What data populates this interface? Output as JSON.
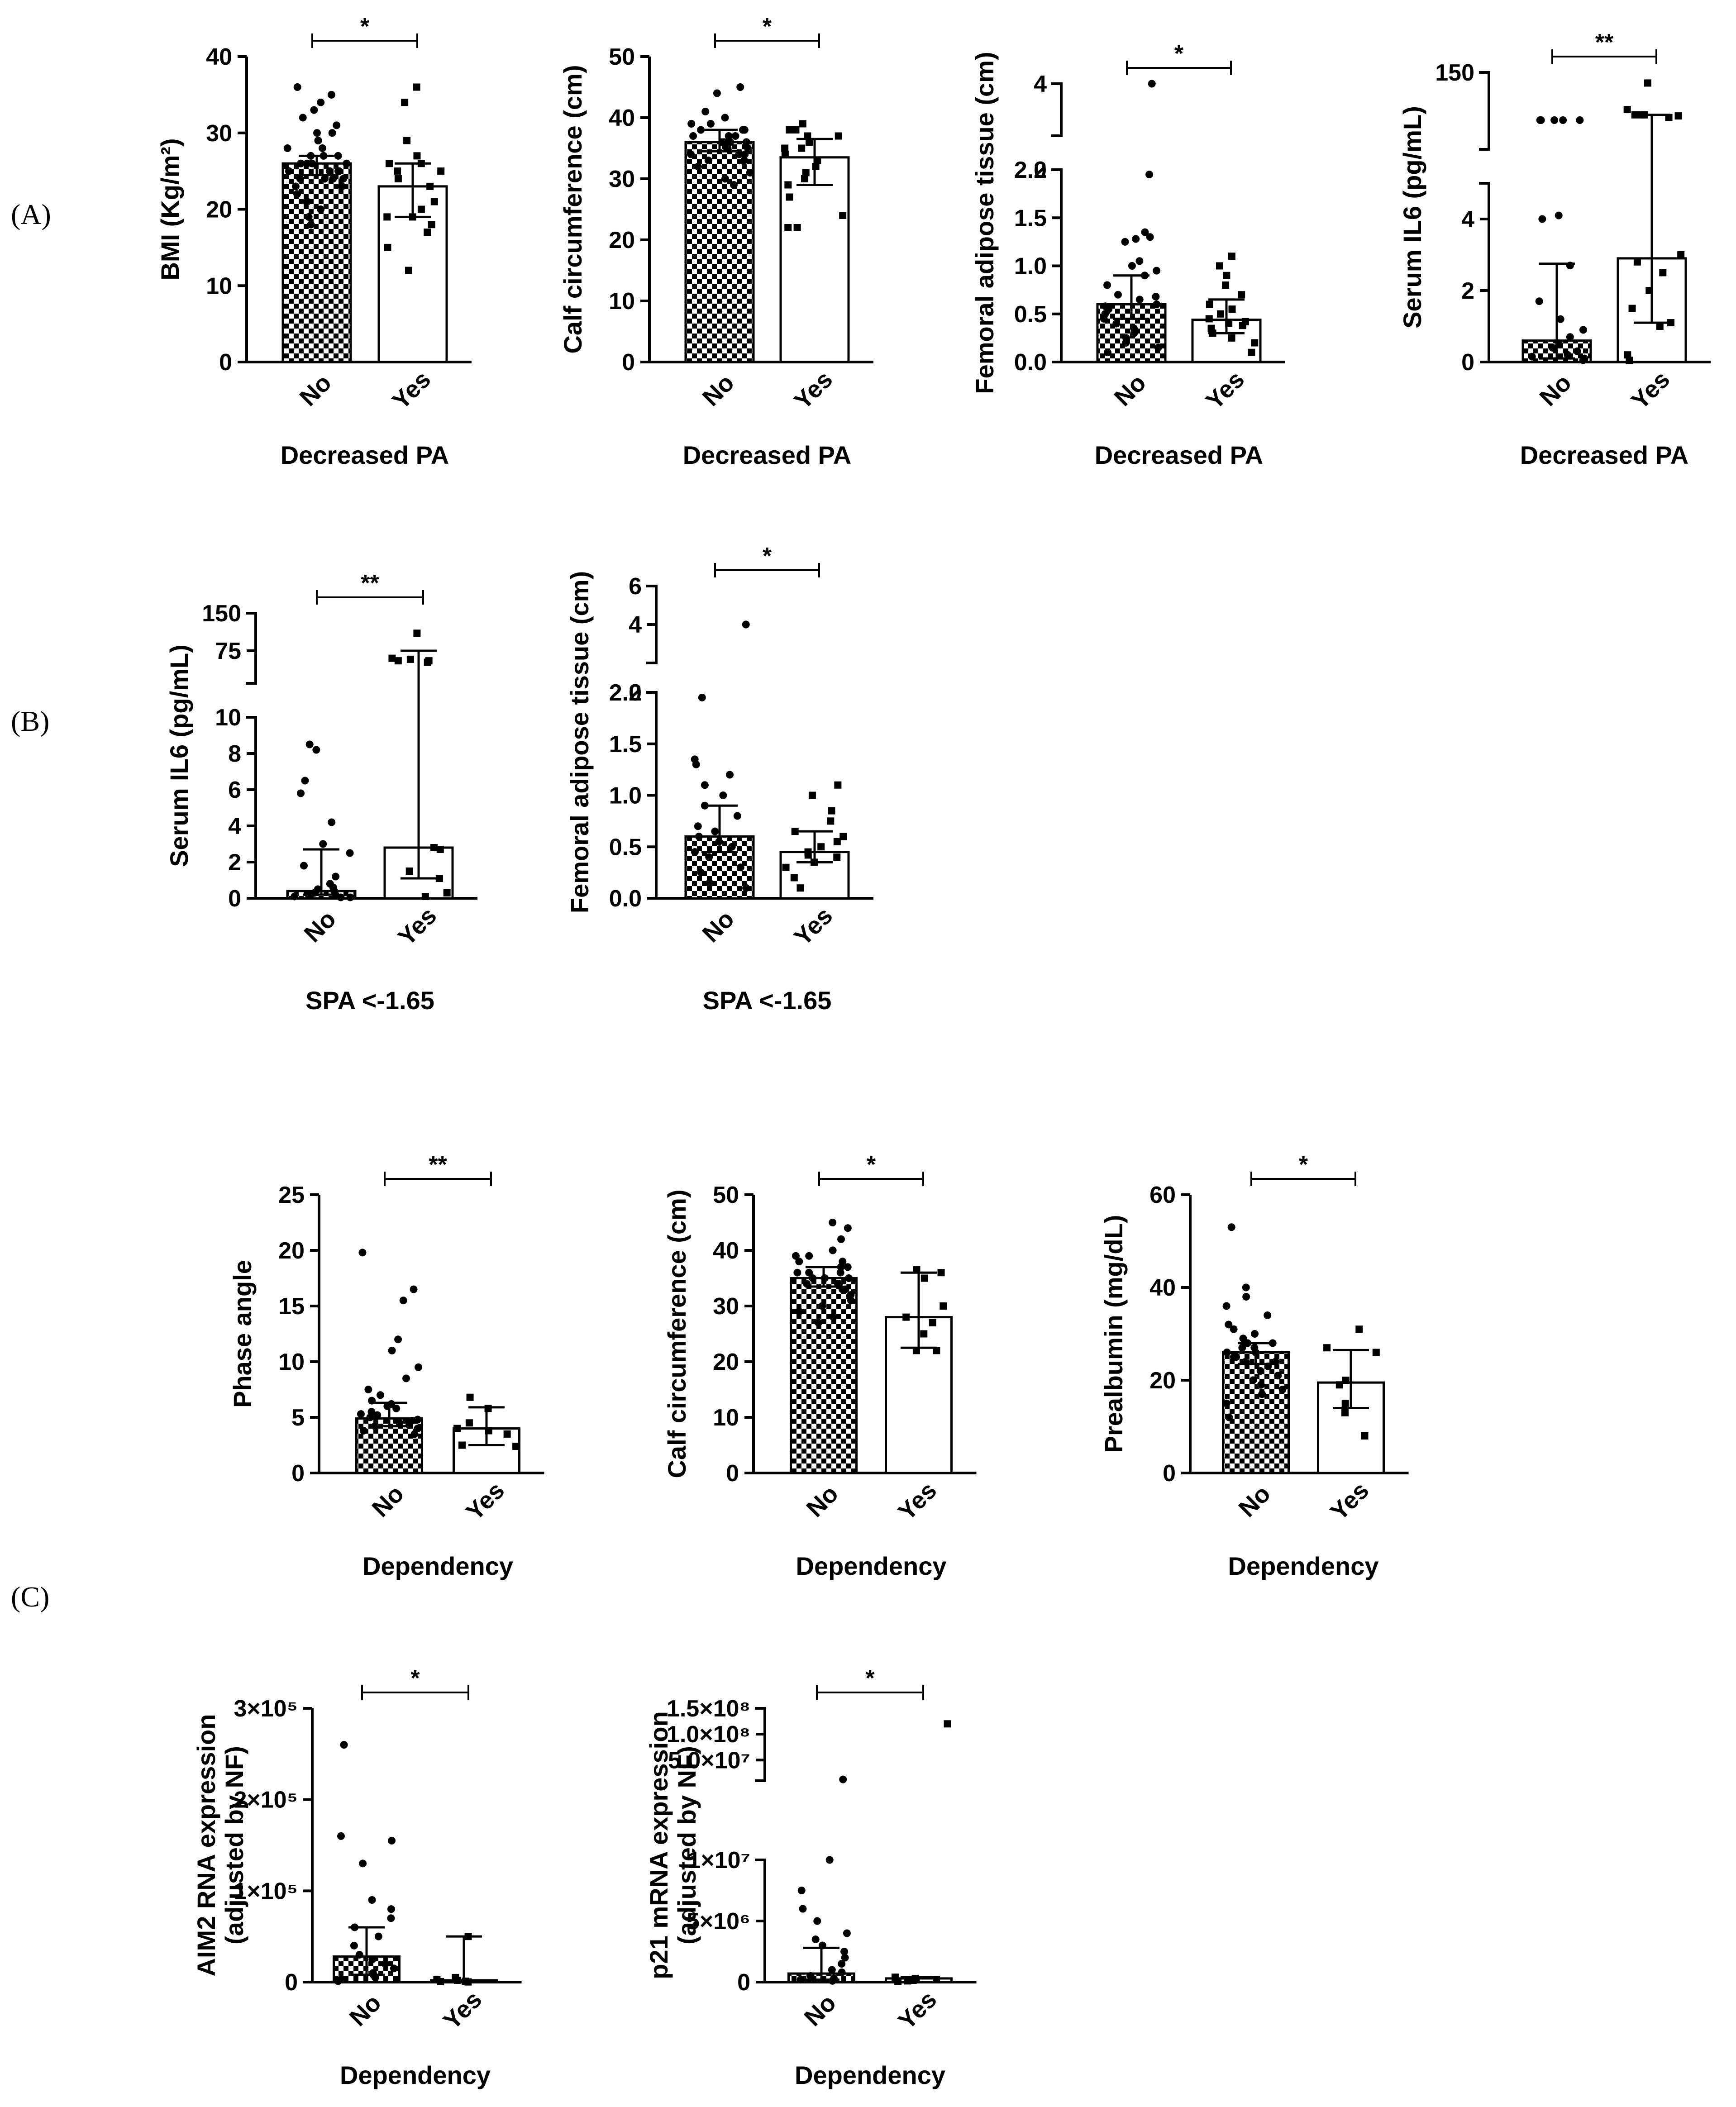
{
  "figure": {
    "panel_labels": [
      "(A)",
      "(B)",
      "(C)"
    ]
  },
  "chart_data": [
    {
      "id": "A1",
      "type": "bar",
      "group": "A",
      "categories": [
        "No",
        "Yes"
      ],
      "xlabel": "Decreased PA",
      "ylabel": "BMI (Kg/m²)",
      "ylim": [
        0,
        40
      ],
      "yticks": [
        0,
        10,
        20,
        30,
        40
      ],
      "bars": [
        {
          "value": 26,
          "err_low": 24.5,
          "err_high": 27,
          "points": [
            36,
            35,
            34,
            33,
            32,
            31,
            30,
            30,
            29,
            29,
            28,
            28,
            27,
            27,
            27,
            26,
            26,
            26,
            26,
            25,
            25,
            25,
            25,
            24,
            24,
            24,
            24,
            23,
            23,
            22,
            21,
            20,
            19,
            18
          ]
        },
        {
          "value": 23,
          "err_low": 19,
          "err_high": 26,
          "points": [
            36,
            34,
            29,
            27,
            26,
            26,
            25,
            25,
            24,
            23,
            21,
            20,
            19,
            19,
            18,
            17,
            15,
            12
          ]
        }
      ],
      "significance": "*"
    },
    {
      "id": "A2",
      "type": "bar",
      "group": "A",
      "categories": [
        "No",
        "Yes"
      ],
      "xlabel": "Decreased PA",
      "ylabel": "Calf circumference (cm)",
      "ylim": [
        0,
        50
      ],
      "yticks": [
        0,
        10,
        20,
        30,
        40,
        50
      ],
      "bars": [
        {
          "value": 36,
          "err_low": 34.5,
          "err_high": 38,
          "points": [
            45,
            44,
            41,
            40,
            39,
            39,
            38,
            38,
            38,
            37,
            37,
            37,
            36,
            36,
            36,
            36,
            35,
            35,
            35,
            34,
            34,
            34,
            33,
            33,
            32,
            31,
            30,
            29
          ]
        },
        {
          "value": 33.5,
          "err_low": 29,
          "err_high": 36.5,
          "points": [
            39,
            38,
            38,
            37,
            37,
            36,
            35,
            35,
            34,
            33,
            32,
            31,
            30,
            29,
            27,
            24,
            22,
            22
          ]
        }
      ],
      "significance": "*"
    },
    {
      "id": "A3",
      "type": "bar",
      "group": "A",
      "broken_axis": true,
      "categories": [
        "No",
        "Yes"
      ],
      "xlabel": "Decreased PA",
      "ylabel": "Femoral adipose tissue (cm)",
      "ylim": [
        0,
        4
      ],
      "yticks": [
        0.0,
        0.5,
        1.0,
        1.5,
        2.0
      ],
      "yticks_upper": [
        2,
        4
      ],
      "bars": [
        {
          "value": 0.6,
          "err_low": 0.45,
          "err_high": 0.9,
          "points": [
            4.0,
            1.95,
            1.35,
            1.3,
            1.28,
            1.25,
            1.05,
            1.0,
            0.95,
            0.9,
            0.8,
            0.7,
            0.68,
            0.65,
            0.6,
            0.58,
            0.55,
            0.5,
            0.45,
            0.4,
            0.35,
            0.3,
            0.25,
            0.2,
            0.15,
            0.1
          ]
        },
        {
          "value": 0.44,
          "err_low": 0.3,
          "err_high": 0.65,
          "points": [
            1.1,
            1.0,
            0.9,
            0.8,
            0.7,
            0.6,
            0.55,
            0.5,
            0.45,
            0.42,
            0.4,
            0.38,
            0.35,
            0.3,
            0.25,
            0.2,
            0.1
          ]
        }
      ],
      "significance": "*"
    },
    {
      "id": "A4",
      "type": "bar",
      "group": "A",
      "broken_axis": true,
      "categories": [
        "No",
        "Yes"
      ],
      "xlabel": "Decreased PA",
      "ylabel": "Serum IL6 (pg/mL)",
      "ylim": [
        0,
        150
      ],
      "yticks": [
        0,
        2,
        4
      ],
      "yticks_upper": [
        150
      ],
      "bars": [
        {
          "value": 0.6,
          "err_low": 0.1,
          "err_high": 2.75,
          "points": [
            60,
            60,
            60,
            60,
            60,
            4.1,
            4.0,
            2.7,
            1.7,
            1.2,
            0.9,
            0.7,
            0.5,
            0.4,
            0.3,
            0.2,
            0.15,
            0.1,
            0.05
          ]
        },
        {
          "value": 2.9,
          "err_low": 1.1,
          "err_high": 70,
          "points": [
            130,
            80,
            70,
            70,
            70,
            68,
            65,
            3.0,
            2.8,
            2.5,
            2.0,
            1.5,
            1.1,
            1.0,
            0.2,
            0.05
          ]
        }
      ],
      "significance": "**"
    },
    {
      "id": "B1",
      "type": "bar",
      "group": "B",
      "broken_axis": true,
      "categories": [
        "No",
        "Yes"
      ],
      "xlabel": "SPA <-1.65",
      "ylabel": "Serum IL6 (pg/mL)",
      "ylim": [
        0,
        150
      ],
      "yticks": [
        0,
        2,
        4,
        6,
        8,
        10
      ],
      "yticks_upper": [
        75,
        150
      ],
      "bars": [
        {
          "value": 0.4,
          "err_low": 0.2,
          "err_high": 2.7,
          "points": [
            8.5,
            8.2,
            6.5,
            5.8,
            4.2,
            3.0,
            2.5,
            1.8,
            1.2,
            0.8,
            0.6,
            0.5,
            0.4,
            0.3,
            0.2,
            0.15,
            0.1,
            0.05,
            0.05
          ]
        },
        {
          "value": 2.8,
          "err_low": 1.1,
          "err_high": 75,
          "points": [
            110,
            60,
            58,
            55,
            55,
            52,
            2.8,
            2.7,
            1.5,
            1.1,
            0.3,
            0.1
          ]
        }
      ],
      "significance": "**"
    },
    {
      "id": "B2",
      "type": "bar",
      "group": "B",
      "broken_axis": true,
      "categories": [
        "No",
        "Yes"
      ],
      "xlabel": "SPA <-1.65",
      "ylabel": "Femoral adipose tissue (cm)",
      "ylim": [
        0,
        6
      ],
      "yticks": [
        0.0,
        0.5,
        1.0,
        1.5,
        2.0
      ],
      "yticks_upper": [
        2,
        4,
        6
      ],
      "bars": [
        {
          "value": 0.6,
          "err_low": 0.45,
          "err_high": 0.9,
          "points": [
            4.0,
            1.95,
            1.35,
            1.3,
            1.2,
            1.1,
            1.0,
            0.9,
            0.8,
            0.7,
            0.65,
            0.6,
            0.55,
            0.5,
            0.45,
            0.4,
            0.3,
            0.25,
            0.15,
            0.1
          ]
        },
        {
          "value": 0.45,
          "err_low": 0.35,
          "err_high": 0.65,
          "points": [
            1.1,
            1.0,
            0.85,
            0.75,
            0.65,
            0.6,
            0.55,
            0.5,
            0.45,
            0.42,
            0.4,
            0.35,
            0.3,
            0.2,
            0.1
          ]
        }
      ],
      "significance": "*"
    },
    {
      "id": "C1",
      "type": "bar",
      "group": "C",
      "categories": [
        "No",
        "Yes"
      ],
      "xlabel": "Dependency",
      "ylabel": "Phase angle",
      "ylim": [
        0,
        25
      ],
      "yticks": [
        0,
        5,
        10,
        15,
        20,
        25
      ],
      "bars": [
        {
          "value": 4.9,
          "err_low": 4.2,
          "err_high": 6.3,
          "points": [
            19.8,
            16.5,
            15.5,
            12,
            11,
            9.5,
            8.5,
            7.5,
            7,
            6.5,
            6.2,
            6,
            5.8,
            5.5,
            5.3,
            5.2,
            5,
            4.8,
            4.7,
            4.5,
            4.3,
            4.2,
            4,
            3.8,
            3.5
          ]
        },
        {
          "value": 4.0,
          "err_low": 2.5,
          "err_high": 5.9,
          "points": [
            6.8,
            5.8,
            4.5,
            4.0,
            3.8,
            3.5,
            2.5,
            2.4
          ]
        }
      ],
      "significance": "**"
    },
    {
      "id": "C2",
      "type": "bar",
      "group": "C",
      "categories": [
        "No",
        "Yes"
      ],
      "xlabel": "Dependency",
      "ylabel": "Calf circumference (cm)",
      "ylim": [
        0,
        50
      ],
      "yticks": [
        0,
        10,
        20,
        30,
        40,
        50
      ],
      "bars": [
        {
          "value": 35,
          "err_low": 33.5,
          "err_high": 37,
          "points": [
            45,
            44,
            42,
            40,
            39,
            39,
            38,
            38,
            37,
            37,
            36,
            36,
            36,
            35,
            35,
            35,
            34,
            34,
            34,
            33,
            33,
            32,
            31,
            30,
            29,
            28,
            27
          ]
        },
        {
          "value": 28,
          "err_low": 22.5,
          "err_high": 36,
          "points": [
            36.5,
            36,
            35,
            30,
            28,
            27,
            25,
            22,
            22
          ]
        }
      ],
      "significance": "*"
    },
    {
      "id": "C3",
      "type": "bar",
      "group": "C",
      "categories": [
        "No",
        "Yes"
      ],
      "xlabel": "Dependency",
      "ylabel": "Prealbumin (mg/dL)",
      "ylim": [
        0,
        60
      ],
      "yticks": [
        0,
        20,
        40,
        60
      ],
      "bars": [
        {
          "value": 26,
          "err_low": 23.5,
          "err_high": 28,
          "points": [
            53,
            40,
            38,
            36,
            34,
            32,
            31,
            30,
            29,
            28,
            28,
            27,
            27,
            26,
            26,
            25,
            25,
            24,
            24,
            23,
            22,
            21,
            20,
            19,
            18,
            17,
            15,
            12
          ]
        },
        {
          "value": 19.5,
          "err_low": 14,
          "err_high": 26.5,
          "points": [
            31,
            27,
            26,
            20,
            19,
            15,
            13,
            8
          ]
        }
      ],
      "significance": "*"
    },
    {
      "id": "C4",
      "type": "bar",
      "group": "C",
      "categories": [
        "No",
        "Yes"
      ],
      "xlabel": "Dependency",
      "ylabel": "AIM2 RNA expression (adjusted by NF)",
      "ylabel_line1": "AIM2 RNA expression",
      "ylabel_line2": "(adjusted by NF)",
      "ylim": [
        0,
        300000
      ],
      "yticks": [
        0,
        100000,
        200000,
        300000
      ],
      "ytick_labels": [
        "0",
        "1×10⁵",
        "2×10⁵",
        "3×10⁵"
      ],
      "bars": [
        {
          "value": 28000,
          "err_low": 8000,
          "err_high": 60000,
          "points": [
            260000,
            160000,
            155000,
            130000,
            90000,
            80000,
            70000,
            60000,
            50000,
            40000,
            30000,
            25000,
            20000,
            15000,
            10000,
            8000,
            5000,
            3000,
            1000
          ]
        },
        {
          "value": 2000,
          "err_low": 0,
          "err_high": 50000,
          "points": [
            50000,
            5000,
            3000,
            2000,
            1000,
            500,
            200
          ]
        }
      ],
      "significance": "*"
    },
    {
      "id": "C5",
      "type": "bar",
      "group": "C",
      "broken_axis": true,
      "categories": [
        "No",
        "Yes"
      ],
      "xlabel": "Dependency",
      "ylabel": "p21 mRNA expression (adjusted by NF)",
      "ylabel_line1": "p21 mRNA expression",
      "ylabel_line2": "(adjusted by NF)",
      "ylim": [
        0,
        150000000
      ],
      "yticks": [
        0,
        5000000,
        10000000
      ],
      "ytick_labels": [
        "0",
        "5×10⁶",
        "1×10⁷"
      ],
      "yticks_upper": [
        50000000,
        100000000,
        150000000
      ],
      "ytick_upper_labels": [
        "5.0×10⁷",
        "1.0×10⁸",
        "1.5×10⁸"
      ],
      "bars": [
        {
          "value": 700000,
          "err_low": 200000,
          "err_high": 2800000,
          "points": [
            12500000,
            10000000,
            7500000,
            6000000,
            5000000,
            4000000,
            3500000,
            3000000,
            2500000,
            2000000,
            1500000,
            1000000,
            800000,
            500000,
            300000,
            200000,
            100000
          ]
        },
        {
          "value": 300000,
          "err_low": 0,
          "err_high": 400000,
          "points": [
            120000000,
            400000,
            300000,
            200000,
            150000,
            100000,
            50000
          ]
        }
      ],
      "significance": "*"
    }
  ]
}
